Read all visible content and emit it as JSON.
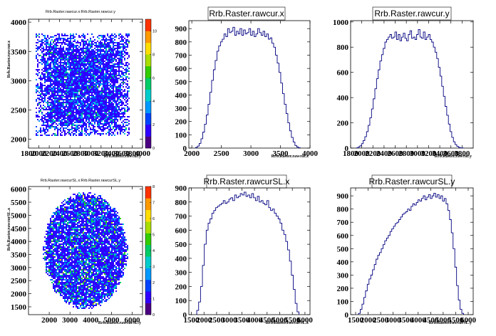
{
  "chart_data": [
    {
      "type": "heatmap",
      "title": "Rrb.Raster.rawcur.x:Rrb.Raster.rawcur.y",
      "xlabel": "Rrb.Raster.rawcur.y",
      "ylabel": "Rrb.Raster.rawcur.x",
      "xlim": [
        1800,
        4000
      ],
      "ylim": [
        1850,
        4050
      ],
      "x_ticks": [
        "1800",
        "2000",
        "2200",
        "2400",
        "2600",
        "2800",
        "3000",
        "3200",
        "3400",
        "3600",
        "3800",
        "4000"
      ],
      "y_ticks": [
        "2000",
        "2500",
        "3000",
        "3500",
        "4000"
      ],
      "z_ticks": [
        "0",
        "2",
        "4",
        "6",
        "8",
        "10"
      ],
      "zlim": [
        0,
        11
      ],
      "shape": "square",
      "region": {
        "x": [
          1950,
          3750
        ],
        "y": [
          2050,
          3800
        ]
      }
    },
    {
      "type": "bar",
      "title": "Rrb.Raster.rawcur.x",
      "xlabel": "Rrb.Raster.rawcur.x",
      "xlim": [
        1950,
        4000
      ],
      "ylim": [
        0,
        960
      ],
      "x_ticks": [
        "2000",
        "2500",
        "3000",
        "3500",
        "4000"
      ],
      "y_ticks": [
        "0",
        "100",
        "200",
        "300",
        "400",
        "500",
        "600",
        "700",
        "800",
        "900"
      ],
      "x": [
        2080,
        2110,
        2140,
        2170,
        2200,
        2230,
        2260,
        2290,
        2320,
        2350,
        2380,
        2410,
        2440,
        2470,
        2500,
        2530,
        2560,
        2590,
        2620,
        2650,
        2680,
        2710,
        2740,
        2770,
        2800,
        2830,
        2860,
        2890,
        2920,
        2950,
        2980,
        3010,
        3040,
        3070,
        3100,
        3130,
        3160,
        3190,
        3220,
        3250,
        3280,
        3310,
        3340,
        3370,
        3400,
        3430,
        3460,
        3490,
        3520,
        3550,
        3580,
        3610,
        3640,
        3670,
        3700,
        3730,
        3760,
        3790,
        3820
      ],
      "values": [
        5,
        15,
        35,
        70,
        120,
        180,
        250,
        330,
        420,
        510,
        590,
        660,
        730,
        770,
        800,
        820,
        860,
        840,
        900,
        870,
        880,
        910,
        850,
        880,
        860,
        900,
        850,
        890,
        860,
        870,
        900,
        850,
        880,
        840,
        860,
        900,
        870,
        850,
        880,
        840,
        860,
        820,
        830,
        790,
        760,
        700,
        640,
        570,
        490,
        410,
        330,
        260,
        190,
        130,
        80,
        45,
        20,
        8,
        2
      ]
    },
    {
      "type": "bar",
      "title": "Rrb.Raster.rawcur.y",
      "xlabel": "Rrb.Raster.rawcur.y",
      "xlim": [
        1800,
        4000
      ],
      "ylim": [
        0,
        1010
      ],
      "x_ticks": [
        "1800",
        "2000",
        "2200",
        "2400",
        "2600",
        "2800",
        "3000",
        "3200",
        "3400",
        "3600",
        "3800"
      ],
      "y_ticks": [
        "0",
        "200",
        "400",
        "600",
        "800",
        "1000"
      ],
      "x": [
        1920,
        1950,
        1980,
        2010,
        2040,
        2070,
        2100,
        2130,
        2160,
        2190,
        2220,
        2250,
        2280,
        2310,
        2340,
        2370,
        2400,
        2430,
        2460,
        2490,
        2520,
        2550,
        2580,
        2610,
        2640,
        2670,
        2700,
        2730,
        2760,
        2790,
        2820,
        2850,
        2880,
        2910,
        2940,
        2970,
        3000,
        3030,
        3060,
        3090,
        3120,
        3150,
        3180,
        3210,
        3240,
        3270,
        3300,
        3330,
        3360,
        3390,
        3420,
        3450,
        3480,
        3510,
        3540,
        3570,
        3600,
        3630,
        3660,
        3690,
        3720,
        3750,
        3780,
        3810
      ],
      "values": [
        2,
        8,
        18,
        35,
        60,
        90,
        130,
        180,
        240,
        310,
        390,
        470,
        550,
        620,
        690,
        740,
        790,
        840,
        860,
        880,
        900,
        870,
        880,
        920,
        860,
        900,
        850,
        880,
        910,
        870,
        850,
        900,
        930,
        870,
        880,
        860,
        900,
        940,
        880,
        870,
        920,
        860,
        880,
        900,
        860,
        840,
        800,
        760,
        710,
        640,
        570,
        490,
        410,
        330,
        260,
        190,
        130,
        85,
        50,
        28,
        14,
        6,
        2,
        1
      ]
    },
    {
      "type": "heatmap",
      "title": "Rrb.Raster.rawcurSL.x:Rrb.Raster.rawcurSL.y",
      "xlabel": "Rrb.Raster.rawcurSL.y",
      "ylabel": "Rrb.Raster.rawcurSL.x",
      "xlim": [
        1000,
        6500
      ],
      "ylim": [
        1200,
        6100
      ],
      "x_ticks": [
        "2000",
        "3000",
        "4000",
        "5000",
        "6000"
      ],
      "y_ticks": [
        "1500",
        "2000",
        "2500",
        "3000",
        "3500",
        "4000",
        "4500",
        "5000",
        "5500",
        "6000"
      ],
      "z_ticks": [
        "0",
        "1",
        "2",
        "3",
        "4",
        "5",
        "6",
        "7",
        "8"
      ],
      "zlim": [
        0,
        8
      ],
      "shape": "circle",
      "region": {
        "cx": 3750,
        "cy": 3650,
        "rx": 2050,
        "ry": 2250
      }
    },
    {
      "type": "bar",
      "title": "Rrb.Raster.rawcurSL.x",
      "xlabel": "Rrb.Raster.rawcurSL.x",
      "xlim": [
        1400,
        6200
      ],
      "ylim": [
        0,
        900
      ],
      "x_ticks": [
        "1500",
        "2000",
        "2500",
        "3000",
        "3500",
        "4000",
        "4500",
        "5000",
        "5500",
        "6000"
      ],
      "y_ticks": [
        "0",
        "100",
        "200",
        "300",
        "400",
        "500",
        "600",
        "700",
        "800",
        "900"
      ],
      "x": [
        1750,
        1825,
        1900,
        1975,
        2050,
        2125,
        2200,
        2275,
        2350,
        2425,
        2500,
        2575,
        2650,
        2725,
        2800,
        2875,
        2950,
        3025,
        3100,
        3175,
        3250,
        3325,
        3400,
        3475,
        3550,
        3625,
        3700,
        3775,
        3850,
        3925,
        4000,
        4075,
        4150,
        4225,
        4300,
        4375,
        4450,
        4525,
        4600,
        4675,
        4750,
        4825,
        4900,
        4975,
        5050,
        5125,
        5200,
        5275,
        5350,
        5425,
        5500,
        5575,
        5650,
        5725
      ],
      "values": [
        30,
        90,
        200,
        350,
        500,
        600,
        650,
        680,
        720,
        740,
        760,
        770,
        780,
        790,
        810,
        790,
        800,
        820,
        830,
        810,
        850,
        830,
        840,
        860,
        850,
        870,
        840,
        850,
        830,
        860,
        830,
        810,
        840,
        800,
        810,
        790,
        780,
        810,
        760,
        740,
        750,
        720,
        700,
        680,
        650,
        600,
        570,
        520,
        460,
        380,
        280,
        180,
        80,
        20
      ]
    },
    {
      "type": "bar",
      "title": "Rrb.Raster.rawcurSL.y",
      "xlabel": "Rrb.Raster.rawcurSL.y",
      "xlim": [
        1300,
        6200
      ],
      "ylim": [
        0,
        960
      ],
      "x_ticks": [
        "1500",
        "2000",
        "2500",
        "3000",
        "3500",
        "4000",
        "4500",
        "5000",
        "5500",
        "6000"
      ],
      "y_ticks": [
        "0",
        "100",
        "200",
        "300",
        "400",
        "500",
        "600",
        "700",
        "800",
        "900"
      ],
      "x": [
        1650,
        1720,
        1790,
        1860,
        1930,
        2000,
        2070,
        2140,
        2210,
        2280,
        2350,
        2420,
        2490,
        2560,
        2630,
        2700,
        2770,
        2840,
        2910,
        2980,
        3050,
        3120,
        3190,
        3260,
        3330,
        3400,
        3470,
        3540,
        3610,
        3680,
        3750,
        3820,
        3890,
        3960,
        4030,
        4100,
        4170,
        4240,
        4310,
        4380,
        4450,
        4520,
        4590,
        4660,
        4730,
        4800,
        4870,
        4940,
        5010,
        5080,
        5150,
        5220,
        5290,
        5360,
        5430,
        5500,
        5570,
        5640,
        5710,
        5780
      ],
      "values": [
        10,
        40,
        80,
        130,
        180,
        230,
        270,
        300,
        340,
        380,
        420,
        450,
        470,
        500,
        530,
        560,
        580,
        600,
        630,
        650,
        670,
        690,
        700,
        720,
        740,
        760,
        770,
        780,
        800,
        790,
        820,
        840,
        830,
        850,
        870,
        860,
        880,
        900,
        870,
        890,
        910,
        880,
        900,
        920,
        890,
        910,
        880,
        900,
        860,
        880,
        840,
        790,
        720,
        620,
        500,
        360,
        220,
        110,
        40,
        10
      ]
    }
  ],
  "colors": {
    "hist_line": "#000080",
    "frame": "#000000",
    "palette": [
      "#4b0082",
      "#2f00ff",
      "#0044ff",
      "#0099ff",
      "#00cccc",
      "#00cc66",
      "#33cc00",
      "#aadd00",
      "#ffdd00",
      "#ff9900",
      "#ff3300"
    ]
  }
}
